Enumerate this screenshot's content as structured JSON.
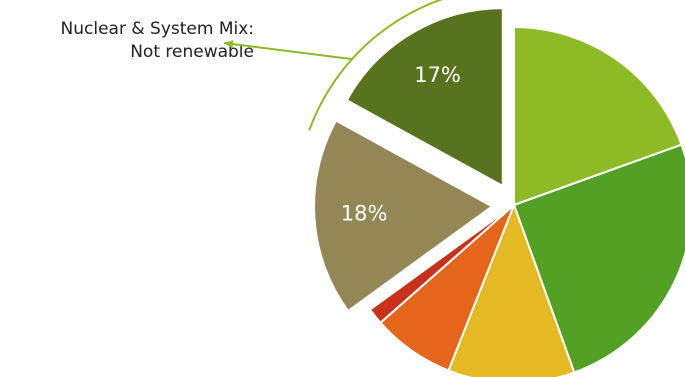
{
  "chart_data": {
    "type": "pie",
    "slices": [
      {
        "value": 19.5,
        "color": "#8DBB25",
        "label": ""
      },
      {
        "value": 25.0,
        "color": "#53A124",
        "label": ""
      },
      {
        "value": 11.5,
        "color": "#E5B923",
        "label": ""
      },
      {
        "value": 7.5,
        "color": "#E5661A",
        "label": ""
      },
      {
        "value": 1.5,
        "color": "#C9311A",
        "label": ""
      },
      {
        "value": 18,
        "color": "#938756",
        "label": "18%"
      },
      {
        "value": 17,
        "color": "#58731D",
        "label": "17%"
      }
    ],
    "annotation": {
      "line1": "Nuclear & System Mix:",
      "line2": "Not renewable",
      "arrow_color": "#8DBB25"
    }
  }
}
